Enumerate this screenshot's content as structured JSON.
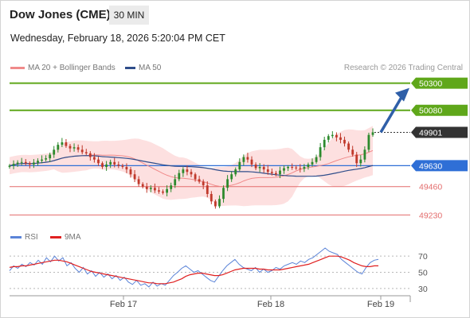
{
  "header": {
    "title": "Dow Jones (CME)",
    "timeframe": "30 MIN",
    "datetime": "Wednesday, February 18, 2026 5:20:04 PM CET"
  },
  "legend": {
    "ma20_label": "MA 20 + Bollinger Bands",
    "ma50_label": "MA 50",
    "credit": "Research © 2026 Trading Central"
  },
  "rsi_legend": {
    "rsi_label": "RSI",
    "ma_label": "9MA"
  },
  "colors": {
    "resistance": "#5fa71a",
    "current": "#333333",
    "pivot": "#2f6fd6",
    "support": "#e36c6c",
    "band_fill": "#fde0e0",
    "ma20": "#f08a8a",
    "ma50": "#2f4d8a",
    "candle_up": "#2d8a2d",
    "candle_down": "#c0392b",
    "arrow": "#2f5fa8",
    "rsi": "#5b84d8",
    "rsi_ma": "#e02020"
  },
  "chart_data": [
    {
      "type": "candlestick",
      "ylim": [
        49200,
        50330
      ],
      "x_tick_labels": [
        "Feb 17",
        "Feb 18",
        "Feb 19"
      ],
      "levels": [
        {
          "label": "50300",
          "value": 50300,
          "kind": "resistance"
        },
        {
          "label": "50080",
          "value": 50080,
          "kind": "resistance"
        },
        {
          "label": "49901",
          "value": 49901,
          "kind": "current"
        },
        {
          "label": "49630",
          "value": 49630,
          "kind": "pivot"
        },
        {
          "label": "49460",
          "value": 49460,
          "kind": "support"
        },
        {
          "label": "49230",
          "value": 49230,
          "kind": "support"
        }
      ],
      "closes": [
        49630,
        49645,
        49655,
        49660,
        49650,
        49640,
        49655,
        49670,
        49680,
        49690,
        49720,
        49760,
        49800,
        49820,
        49790,
        49770,
        49780,
        49760,
        49740,
        49730,
        49700,
        49680,
        49650,
        49620,
        49640,
        49660,
        49640,
        49630,
        49620,
        49600,
        49560,
        49520,
        49480,
        49460,
        49440,
        49450,
        49430,
        49420,
        49410,
        49440,
        49470,
        49520,
        49570,
        49600,
        49580,
        49560,
        49520,
        49500,
        49470,
        49400,
        49340,
        49300,
        49360,
        49450,
        49520,
        49560,
        49600,
        49660,
        49700,
        49680,
        49640,
        49610,
        49620,
        49600,
        49580,
        49570,
        49560,
        49590,
        49610,
        49620,
        49615,
        49610,
        49605,
        49620,
        49640,
        49660,
        49700,
        49780,
        49840,
        49870,
        49880,
        49860,
        49840,
        49810,
        49760,
        49720,
        49650,
        49680,
        49760,
        49880,
        49901
      ]
    },
    {
      "type": "line",
      "title": "RSI",
      "ylim": [
        25,
        80
      ],
      "y_ticks": [
        70,
        50,
        30
      ],
      "series": [
        {
          "name": "RSI",
          "values": [
            52,
            58,
            55,
            60,
            57,
            62,
            59,
            65,
            60,
            68,
            63,
            70,
            64,
            68,
            58,
            62,
            55,
            50,
            56,
            48,
            52,
            45,
            50,
            44,
            48,
            42,
            46,
            40,
            44,
            38,
            35,
            40,
            34,
            36,
            32,
            38,
            33,
            36,
            34,
            40,
            46,
            50,
            55,
            58,
            54,
            50,
            52,
            48,
            44,
            40,
            38,
            45,
            52,
            58,
            62,
            66,
            60,
            56,
            54,
            52,
            56,
            50,
            54,
            50,
            52,
            56,
            54,
            58,
            60,
            62,
            60,
            64,
            62,
            66,
            68,
            72,
            76,
            80,
            76,
            74,
            72,
            66,
            62,
            58,
            54,
            50,
            48,
            56,
            62,
            65,
            66
          ]
        },
        {
          "name": "9MA",
          "values": [
            56,
            57,
            57,
            58,
            58,
            59,
            60,
            61,
            62,
            63,
            64,
            65,
            65,
            64,
            63,
            61,
            59,
            57,
            55,
            53,
            51,
            50,
            49,
            48,
            47,
            46,
            45,
            44,
            43,
            42,
            41,
            40,
            39,
            38,
            37,
            37,
            36,
            36,
            36,
            37,
            38,
            40,
            42,
            45,
            47,
            48,
            49,
            49,
            48,
            47,
            46,
            46,
            47,
            49,
            51,
            53,
            54,
            55,
            55,
            55,
            55,
            54,
            54,
            53,
            53,
            53,
            53,
            54,
            55,
            56,
            57,
            58,
            59,
            60,
            62,
            64,
            66,
            68,
            70,
            70,
            70,
            69,
            67,
            65,
            62,
            60,
            58,
            57,
            57,
            58,
            58
          ]
        }
      ]
    }
  ]
}
